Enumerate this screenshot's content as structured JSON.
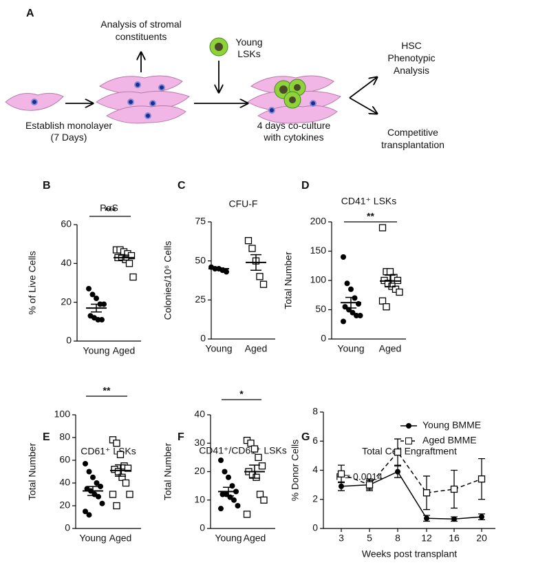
{
  "diagram": {
    "panel": "A",
    "stroma_text": [
      "Analysis of stromal",
      "constituents"
    ],
    "lsk_text": [
      "Young",
      "LSKs"
    ],
    "hsc_text": [
      "HSC",
      "Phenotypic",
      "Analysis"
    ],
    "monolayer_text": [
      "Establish monolayer",
      "(7 Days)"
    ],
    "coculture_text": [
      "4 days co-culture",
      "with cytokines"
    ],
    "transplant_text": [
      "Competitive",
      "transplantation"
    ]
  },
  "chart_data": [
    {
      "type": "dot_plot",
      "panel": "B",
      "title": "PαS",
      "ylabel": "% of Live Cells",
      "categories": [
        "Young",
        "Aged"
      ],
      "markers": [
        "circle",
        "square"
      ],
      "values": [
        [
          27,
          24,
          22,
          19,
          19,
          13,
          12,
          11,
          11
        ],
        [
          47,
          47,
          46,
          45,
          44,
          43,
          43,
          42,
          40,
          33
        ]
      ],
      "means": [
        17,
        43
      ],
      "sems": [
        2,
        1.3
      ],
      "significance": "***",
      "ylim": [
        0,
        60
      ],
      "yticks": [
        0,
        20,
        40,
        60
      ]
    },
    {
      "type": "dot_plot",
      "panel": "C",
      "title": "CFU-F",
      "ylabel": "Colonies/10⁶ Cells",
      "categories": [
        "Young",
        "Aged"
      ],
      "markers": [
        "circle",
        "square"
      ],
      "values": [
        [
          46,
          45,
          45,
          44,
          43
        ],
        [
          63,
          58,
          50,
          40,
          35
        ]
      ],
      "means": [
        45,
        49
      ],
      "sems": [
        0.5,
        5
      ],
      "ylim": [
        0,
        75
      ],
      "yticks": [
        0,
        25,
        50,
        75
      ]
    },
    {
      "type": "dot_plot",
      "panel": "D",
      "title": "CD41⁺ LSKs",
      "ylabel": "Total Number",
      "categories": [
        "Young",
        "Aged"
      ],
      "markers": [
        "circle",
        "square"
      ],
      "values": [
        [
          140,
          95,
          85,
          70,
          60,
          55,
          50,
          45,
          40,
          40,
          30
        ],
        [
          190,
          115,
          115,
          105,
          100,
          100,
          95,
          90,
          85,
          80,
          65,
          55
        ]
      ],
      "means": [
        62,
        99
      ],
      "sems": [
        9,
        10
      ],
      "significance": "**",
      "ylim": [
        0,
        200
      ],
      "yticks": [
        0,
        50,
        100,
        150,
        200
      ]
    },
    {
      "type": "dot_plot",
      "panel": "E",
      "title": "CD61⁺ LSKs",
      "ylabel": "Total Number",
      "categories": [
        "Young",
        "Aged"
      ],
      "markers": [
        "circle",
        "square"
      ],
      "values": [
        [
          57,
          50,
          45,
          40,
          37,
          35,
          33,
          30,
          28,
          22,
          15,
          12
        ],
        [
          78,
          75,
          65,
          55,
          53,
          52,
          50,
          45,
          40,
          30,
          30,
          20
        ]
      ],
      "means": [
        33,
        51
      ],
      "sems": [
        4,
        5
      ],
      "significance": "**",
      "ylim": [
        0,
        100
      ],
      "yticks": [
        0,
        20,
        40,
        60,
        80,
        100
      ]
    },
    {
      "type": "dot_plot",
      "panel": "F",
      "title": "CD41⁺/CD61⁺ LSKs",
      "ylabel": "Total Number",
      "categories": [
        "Young",
        "Aged"
      ],
      "markers": [
        "circle",
        "square"
      ],
      "values": [
        [
          24,
          20,
          18,
          15,
          13,
          12,
          12,
          11,
          10,
          8,
          7
        ],
        [
          31,
          30,
          28,
          25,
          22,
          20,
          19,
          18,
          12,
          10,
          5
        ]
      ],
      "means": [
        13,
        20
      ],
      "sems": [
        1.5,
        2.3
      ],
      "significance": "*",
      "ylim": [
        0,
        40
      ],
      "yticks": [
        0,
        10,
        20,
        30,
        40
      ]
    },
    {
      "type": "line",
      "panel": "G",
      "title": "Total Cell Engraftment",
      "xlabel": "Weeks post transplant",
      "ylabel": "% Donor Cells",
      "annotation": "P = 0.0014",
      "categories": [
        "3",
        "5",
        "8",
        "12",
        "16",
        "20"
      ],
      "series": [
        {
          "name": "Young BMME",
          "marker": "circle",
          "dashed": false,
          "values": [
            2.9,
            3.0,
            3.9,
            0.7,
            0.65,
            0.8
          ],
          "errors": [
            0.3,
            0.3,
            0.4,
            0.2,
            0.15,
            0.2
          ]
        },
        {
          "name": "Aged BMME",
          "marker": "square",
          "dashed": true,
          "values": [
            3.75,
            3.0,
            5.25,
            2.45,
            2.7,
            3.4
          ],
          "errors": [
            0.6,
            0.4,
            0.9,
            1.15,
            1.3,
            1.4
          ]
        }
      ],
      "legend": "upper right",
      "ylim": [
        0,
        8
      ],
      "yticks": [
        0,
        2,
        4,
        6,
        8
      ]
    }
  ]
}
